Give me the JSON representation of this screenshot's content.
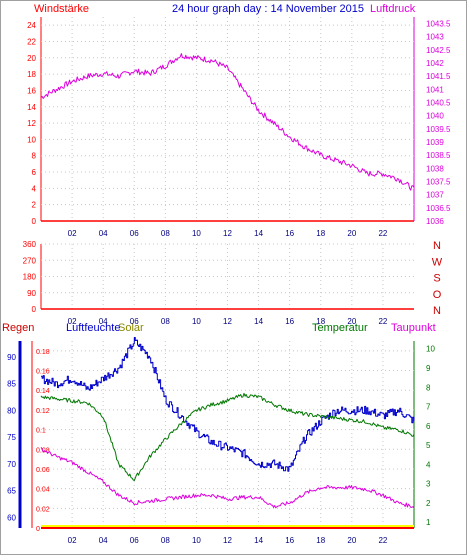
{
  "header": {
    "left_label": "Windstärke",
    "title": "24 hour graph day : 14 November 2015",
    "right_label": "Luftdruck"
  },
  "colors": {
    "red": "#ff0000",
    "darkred": "#cc0000",
    "magenta": "#dd00dd",
    "blue": "#0000cc",
    "green": "#007700",
    "olive": "#888800",
    "grid": "#c8c8c8",
    "rain_bar": "#ffff00"
  },
  "x_ticks": [
    "02",
    "04",
    "06",
    "08",
    "10",
    "12",
    "14",
    "16",
    "18",
    "20",
    "22"
  ],
  "wind_panel": {
    "y_ticks_left": [
      "0",
      "2",
      "4",
      "6",
      "8",
      "10",
      "12",
      "14",
      "16",
      "18",
      "20",
      "22",
      "24"
    ],
    "y_ticks_right": [
      "1036",
      "1036.5",
      "1037",
      "1037.5",
      "1038",
      "1038.5",
      "1039",
      "1039.5",
      "1040",
      "1040.5",
      "1041",
      "1041.5",
      "1042",
      "1042.5",
      "1043",
      "1043.5"
    ]
  },
  "dir_panel": {
    "y_ticks_left": [
      "0",
      "90",
      "180",
      "270",
      "360"
    ],
    "compass": [
      "N",
      "W",
      "S",
      "O",
      "N"
    ]
  },
  "weather_panel": {
    "labels": {
      "rain": "Regen",
      "humidity": "Luftfeuchte",
      "solar": "Solar",
      "temperature": "Temperatur",
      "dewpoint": "Taupunkt"
    },
    "y_ticks_humidity": [
      "60",
      "65",
      "70",
      "75",
      "80",
      "85",
      "90"
    ],
    "y_ticks_rain": [
      "0",
      "0.02",
      "0.04",
      "0.06",
      "0.08",
      "0.1",
      "0.12",
      "0.14",
      "0.16",
      "0.18"
    ],
    "y_ticks_temp": [
      "1",
      "2",
      "3",
      "4",
      "5",
      "6",
      "7",
      "8",
      "9",
      "10"
    ]
  },
  "chart_data": [
    {
      "type": "line",
      "x": [
        0,
        1,
        2,
        3,
        4,
        5,
        6,
        7,
        8,
        9,
        10,
        11,
        12,
        13,
        14,
        15,
        16,
        17,
        18,
        19,
        20,
        21,
        22,
        23,
        24
      ],
      "series": [
        {
          "name": "Luftdruck",
          "axis": "right",
          "values": [
            1040.7,
            1041.0,
            1041.3,
            1041.5,
            1041.6,
            1041.5,
            1041.7,
            1041.6,
            1041.9,
            1042.3,
            1042.2,
            1042.1,
            1041.8,
            1041.0,
            1040.2,
            1039.7,
            1039.2,
            1038.8,
            1038.5,
            1038.3,
            1038.1,
            1037.8,
            1037.8,
            1037.6,
            1037.2
          ]
        },
        {
          "name": "Windstärke",
          "axis": "left",
          "values": [
            0,
            0,
            0,
            0,
            0,
            0,
            0,
            0,
            0,
            0,
            0,
            0,
            0,
            0,
            0,
            0,
            0,
            0,
            0,
            0,
            0,
            0,
            0,
            0,
            0
          ]
        }
      ],
      "ylim_left": [
        0,
        25
      ],
      "ylim_right": [
        1036,
        1043.75
      ],
      "xlim": [
        0,
        24
      ]
    },
    {
      "type": "line",
      "x": [
        0,
        24
      ],
      "series": [
        {
          "name": "Windrichtung",
          "values": [
            0,
            0
          ]
        }
      ],
      "ylim": [
        0,
        360
      ],
      "xlim": [
        0,
        24
      ]
    },
    {
      "type": "line",
      "x": [
        0,
        1,
        2,
        3,
        4,
        5,
        6,
        7,
        8,
        9,
        10,
        11,
        12,
        13,
        14,
        15,
        16,
        17,
        18,
        19,
        20,
        21,
        22,
        23,
        24
      ],
      "series": [
        {
          "name": "Luftfeuchte",
          "axis": "humidity",
          "values": [
            86,
            85,
            86,
            84,
            86,
            88,
            93,
            90,
            82,
            79,
            76,
            74,
            73,
            72,
            70,
            70,
            69,
            75,
            78,
            80,
            80,
            80,
            79,
            80,
            78
          ]
        },
        {
          "name": "Temperatur",
          "axis": "temp",
          "values": [
            7.5,
            7.4,
            7.3,
            7.2,
            6.5,
            4.0,
            3.2,
            4.4,
            5.3,
            6.1,
            6.8,
            7.1,
            7.3,
            7.6,
            7.5,
            7.1,
            6.8,
            6.6,
            6.5,
            6.4,
            6.3,
            6.2,
            5.9,
            5.8,
            5.5
          ]
        },
        {
          "name": "Taupunkt",
          "axis": "temp",
          "values": [
            4.8,
            4.4,
            4.1,
            3.6,
            3.1,
            2.4,
            2.0,
            2.1,
            2.2,
            2.3,
            2.4,
            2.4,
            2.2,
            2.3,
            2.3,
            1.8,
            2.0,
            2.5,
            2.8,
            2.8,
            2.8,
            2.7,
            2.4,
            2.0,
            1.8
          ]
        },
        {
          "name": "Regen",
          "axis": "rain",
          "values": [
            0,
            0,
            0,
            0,
            0,
            0,
            0,
            0,
            0,
            0,
            0,
            0,
            0,
            0,
            0,
            0,
            0,
            0,
            0,
            0,
            0,
            0,
            0,
            0,
            0
          ]
        }
      ],
      "ylim_humidity": [
        58,
        93
      ],
      "ylim_rain": [
        0,
        0.19
      ],
      "ylim_temp": [
        0.7,
        10.4
      ],
      "xlim": [
        0,
        24
      ]
    }
  ]
}
